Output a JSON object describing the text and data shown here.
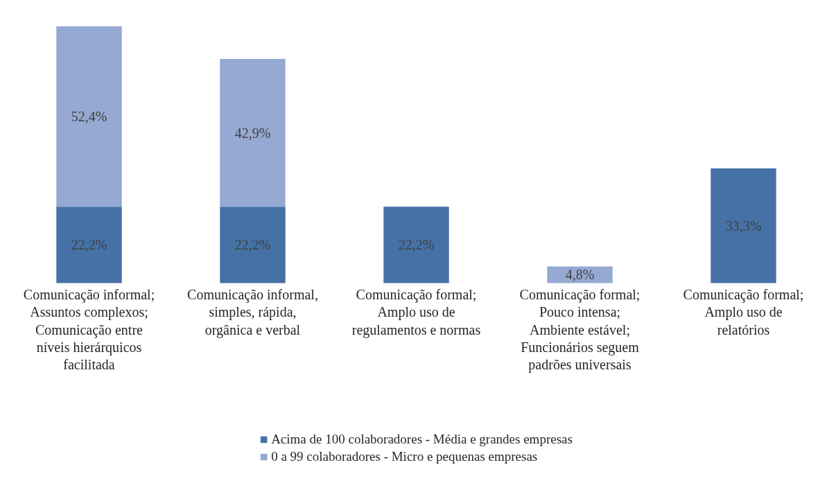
{
  "chart_data": {
    "type": "bar",
    "stacked": true,
    "legend": "bottom",
    "categories": [
      "Comunicação informal; Assuntos complexos; Comunicação entre níveis hierárquicos facilitada",
      "Comunicação informal, simples, rápida, orgânica e verbal",
      "Comunicação formal; Amplo uso de regulamentos e normas",
      "Comunicação formal; Pouco intensa; Ambiente estável; Funcionários seguem padrões universais",
      "Comunicação formal; Amplo uso de relatórios"
    ],
    "series": [
      {
        "name": "Acima de 100 colaboradores - Média e grandes empresas",
        "color": "#4571a7",
        "values": [
          22.2,
          22.2,
          22.2,
          null,
          33.3
        ],
        "value_labels": [
          "22,2%",
          "22,2%",
          "22,2%",
          null,
          "33,3%"
        ]
      },
      {
        "name": "0 a 99 colaboradores - Micro e pequenas empresas",
        "color": "#95a9d2",
        "values": [
          52.4,
          42.9,
          null,
          4.8,
          null
        ],
        "value_labels": [
          "52,4%",
          "42,9%",
          null,
          "4,8%",
          null
        ]
      }
    ]
  }
}
